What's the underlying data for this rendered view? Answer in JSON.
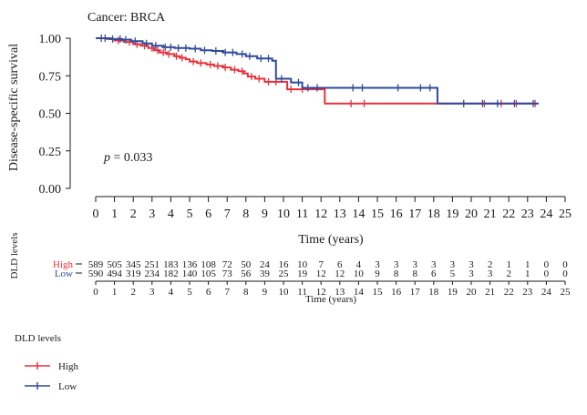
{
  "chart_data": {
    "type": "kaplan-meier",
    "title": "Cancer: BRCA",
    "ylabel": "Disease-specific survival",
    "xlabel": "Time (years)",
    "pvalue_label": "p",
    "pvalue_text": " = 0.033",
    "xlim": [
      0,
      25
    ],
    "ylim": [
      0,
      1
    ],
    "x_ticks": [
      0,
      1,
      2,
      3,
      4,
      5,
      6,
      7,
      8,
      9,
      10,
      11,
      12,
      13,
      14,
      15,
      16,
      17,
      18,
      19,
      20,
      21,
      22,
      23,
      24,
      25
    ],
    "y_ticks": [
      "0.00",
      "0.25",
      "0.50",
      "0.75",
      "1.00"
    ],
    "y_tick_values": [
      0,
      0.25,
      0.5,
      0.75,
      1.0
    ],
    "legend_title": "DLD levels",
    "series": [
      {
        "name": "High",
        "color": "#e8313a",
        "steps": [
          [
            0,
            1.0
          ],
          [
            0.6,
            0.995
          ],
          [
            1.0,
            0.985
          ],
          [
            1.5,
            0.975
          ],
          [
            2.0,
            0.96
          ],
          [
            2.4,
            0.95
          ],
          [
            2.8,
            0.935
          ],
          [
            3.1,
            0.92
          ],
          [
            3.4,
            0.905
          ],
          [
            3.8,
            0.895
          ],
          [
            4.2,
            0.88
          ],
          [
            4.5,
            0.87
          ],
          [
            4.8,
            0.86
          ],
          [
            5.0,
            0.845
          ],
          [
            5.4,
            0.835
          ],
          [
            5.9,
            0.825
          ],
          [
            6.3,
            0.815
          ],
          [
            6.8,
            0.805
          ],
          [
            7.2,
            0.79
          ],
          [
            7.6,
            0.78
          ],
          [
            7.9,
            0.765
          ],
          [
            8.1,
            0.745
          ],
          [
            8.5,
            0.73
          ],
          [
            9.0,
            0.71
          ],
          [
            10.2,
            0.66
          ],
          [
            12.2,
            0.565
          ],
          [
            23.5,
            0.565
          ]
        ],
        "censor_x": [
          1.2,
          1.8,
          2.2,
          2.6,
          3.0,
          3.3,
          3.6,
          3.9,
          4.3,
          4.6,
          5.2,
          5.6,
          6.1,
          6.5,
          6.9,
          7.4,
          7.8,
          8.3,
          8.7,
          9.2,
          9.6,
          10.4,
          11.0,
          13.6,
          14.3,
          20.7,
          21.6,
          22.4,
          23.4
        ]
      },
      {
        "name": "Low",
        "color": "#2f4b9c",
        "steps": [
          [
            0,
            1.0
          ],
          [
            0.8,
            0.995
          ],
          [
            1.4,
            0.99
          ],
          [
            1.9,
            0.98
          ],
          [
            2.5,
            0.965
          ],
          [
            3.0,
            0.95
          ],
          [
            3.6,
            0.94
          ],
          [
            4.2,
            0.935
          ],
          [
            5.0,
            0.93
          ],
          [
            5.6,
            0.92
          ],
          [
            6.2,
            0.915
          ],
          [
            6.8,
            0.905
          ],
          [
            7.5,
            0.895
          ],
          [
            8.0,
            0.88
          ],
          [
            8.6,
            0.865
          ],
          [
            9.4,
            0.85
          ],
          [
            9.6,
            0.73
          ],
          [
            10.4,
            0.705
          ],
          [
            11.0,
            0.67
          ],
          [
            18.1,
            0.67
          ],
          [
            18.2,
            0.565
          ],
          [
            23.6,
            0.565
          ]
        ],
        "censor_x": [
          0.3,
          0.5,
          0.9,
          1.3,
          1.6,
          2.1,
          2.7,
          3.2,
          3.7,
          4.0,
          4.4,
          4.8,
          5.3,
          5.8,
          6.4,
          6.9,
          7.3,
          7.8,
          8.2,
          8.8,
          9.2,
          9.9,
          10.8,
          11.3,
          11.8,
          13.7,
          14.2,
          16.1,
          17.3,
          17.8,
          19.6,
          20.6,
          21.4,
          22.3,
          23.3
        ]
      }
    ],
    "risk_table": {
      "ylabel": "DLD levels",
      "xlabel": "Time (years)",
      "rows": [
        {
          "label": "High",
          "color": "#e8313a",
          "values": [
            "589",
            "505",
            "345",
            "251",
            "183",
            "136",
            "108",
            "72",
            "50",
            "24",
            "16",
            "10",
            "7",
            "6",
            "4",
            "3",
            "3",
            "3",
            "3",
            "3",
            "3",
            "2",
            "1",
            "1",
            "0",
            "0"
          ]
        },
        {
          "label": "Low",
          "color": "#2f4b9c",
          "values": [
            "590",
            "494",
            "319",
            "234",
            "182",
            "140",
            "105",
            "73",
            "56",
            "39",
            "25",
            "19",
            "12",
            "12",
            "10",
            "9",
            "8",
            "8",
            "6",
            "5",
            "3",
            "3",
            "2",
            "1",
            "0",
            "0"
          ]
        }
      ]
    }
  }
}
